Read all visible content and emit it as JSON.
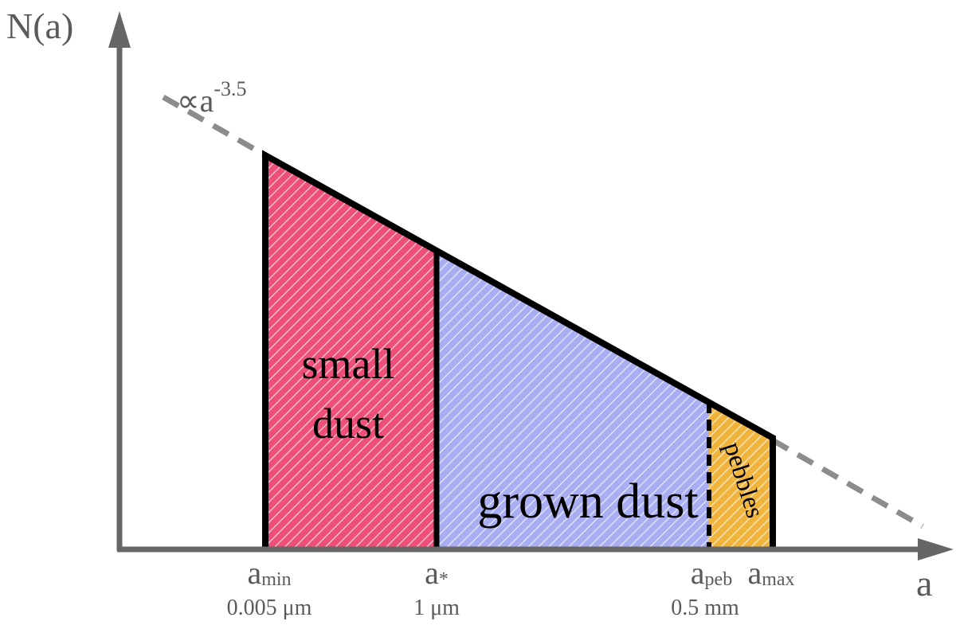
{
  "axes": {
    "y_label": "N(a)",
    "x_label": "a"
  },
  "power_law": {
    "base": "∝a",
    "exponent": "-3.5"
  },
  "regions": [
    {
      "lines": [
        "small",
        "dust"
      ]
    },
    {
      "lines": [
        "grown dust"
      ]
    },
    {
      "lines": [
        "pebbles"
      ]
    }
  ],
  "markers": [
    {
      "symbol": "a",
      "subscript": "min",
      "value": "0.005 μm"
    },
    {
      "symbol": "a",
      "subscript": "*",
      "value": "1 μm"
    },
    {
      "symbol": "a",
      "subscript": "peb",
      "value": "0.5 mm"
    },
    {
      "symbol": "a",
      "subscript": "max"
    }
  ]
}
